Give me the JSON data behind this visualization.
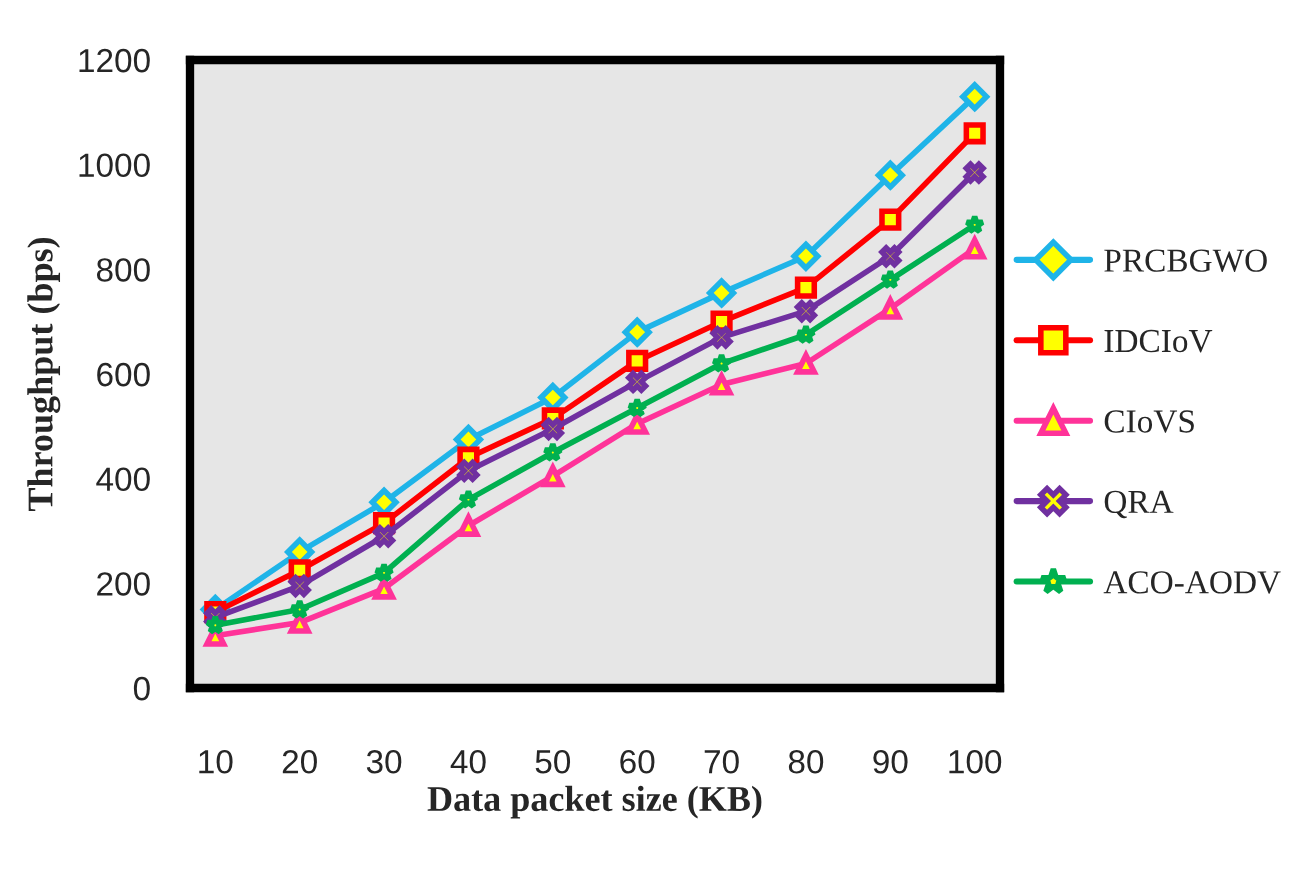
{
  "chart_data": {
    "type": "line",
    "xlabel": "Data packet size (KB)",
    "ylabel": "Throughput (bps)",
    "categories": [
      "10",
      "20",
      "30",
      "40",
      "50",
      "60",
      "70",
      "80",
      "90",
      "100"
    ],
    "series": [
      {
        "name": "PRCBGWO",
        "color": "#1fb4e8",
        "marker": "diamond",
        "values": [
          150,
          260,
          355,
          475,
          555,
          680,
          755,
          825,
          980,
          1130
        ]
      },
      {
        "name": "IDCIoV",
        "color": "#ff0000",
        "marker": "square",
        "values": [
          145,
          225,
          315,
          440,
          515,
          625,
          700,
          765,
          895,
          1060
        ]
      },
      {
        "name": "CIoVS",
        "color": "#ff3399",
        "marker": "triangle",
        "values": [
          100,
          125,
          190,
          310,
          405,
          505,
          580,
          620,
          725,
          840
        ]
      },
      {
        "name": "QRA",
        "color": "#7030a0",
        "marker": "cross",
        "values": [
          135,
          195,
          290,
          415,
          495,
          585,
          670,
          720,
          825,
          985
        ]
      },
      {
        "name": "ACO-AODV",
        "color": "#00b050",
        "marker": "star",
        "values": [
          120,
          150,
          220,
          360,
          450,
          535,
          620,
          675,
          780,
          885
        ]
      }
    ],
    "ylim": [
      0,
      1200
    ],
    "yticks": [
      0,
      200,
      400,
      600,
      800,
      1000,
      1200
    ],
    "grid": false,
    "legend": "right",
    "line_style": "solid"
  }
}
